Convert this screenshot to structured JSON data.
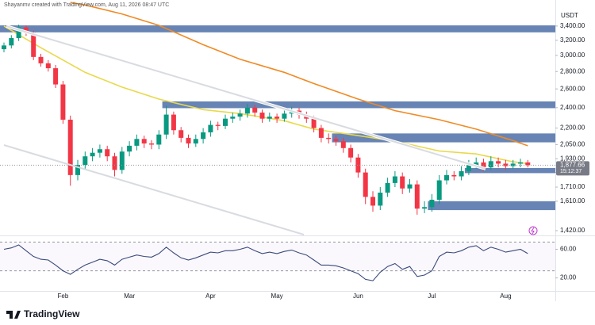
{
  "header": "Shayanmv created with TradingView.com, Aug 11, 2026 08:47 UTC",
  "brand": "TradingView",
  "chart_data": [
    {
      "type": "candlestick",
      "currency": "USDT",
      "log_scale": true,
      "up_color": "#089981",
      "down_color": "#f23645",
      "ylim": [
        1396,
        3800
      ],
      "yticks": [
        {
          "value": 3400,
          "label": "3,400.00"
        },
        {
          "value": 3200,
          "label": "3,200.00"
        },
        {
          "value": 3000,
          "label": "3,000.00"
        },
        {
          "value": 2800,
          "label": "2,800.00"
        },
        {
          "value": 2600,
          "label": "2,600.00"
        },
        {
          "value": 2400,
          "label": "2,400.00"
        },
        {
          "value": 2200,
          "label": "2,200.00"
        },
        {
          "value": 2050,
          "label": "2,050.00"
        },
        {
          "value": 1930,
          "label": "1,930.00"
        },
        {
          "value": 1820,
          "label": "1,820.00"
        },
        {
          "value": 1710,
          "label": "1,710.00"
        },
        {
          "value": 1610,
          "label": "1,610.00"
        },
        {
          "value": 1420,
          "label": "1,420.00"
        }
      ],
      "categories": [
        null,
        null,
        null,
        null,
        null,
        null,
        null,
        null,
        "Feb",
        null,
        null,
        null,
        null,
        null,
        null,
        null,
        null,
        "Mar",
        null,
        null,
        null,
        null,
        null,
        null,
        null,
        null,
        null,
        null,
        "Apr",
        null,
        null,
        null,
        null,
        null,
        null,
        null,
        null,
        "May",
        null,
        null,
        null,
        null,
        null,
        null,
        null,
        null,
        null,
        null,
        "Jun",
        null,
        null,
        null,
        null,
        null,
        null,
        null,
        null,
        null,
        "Jul",
        null,
        null,
        null,
        null,
        null,
        null,
        null,
        null,
        null,
        "Aug",
        null,
        null,
        null
      ],
      "open": [
        3080,
        3130,
        3230,
        3380,
        3300,
        2980,
        2900,
        2840,
        2650,
        2280,
        1800,
        1880,
        1950,
        1980,
        2010,
        1950,
        1840,
        1990,
        2040,
        2100,
        2060,
        2050,
        2140,
        2330,
        2180,
        2110,
        2060,
        2100,
        2160,
        2230,
        2220,
        2290,
        2310,
        2340,
        2400,
        2350,
        2290,
        2310,
        2290,
        2340,
        2370,
        2330,
        2290,
        2200,
        2110,
        2100,
        2080,
        2020,
        1940,
        1820,
        1640,
        1580,
        1670,
        1740,
        1790,
        1700,
        1730,
        1560,
        1570,
        1620,
        1760,
        1800,
        1790,
        1830,
        1880,
        1900,
        1860,
        1910,
        1890,
        1870,
        1890,
        1900
      ],
      "high": [
        3170,
        3270,
        3420,
        3410,
        3330,
        3020,
        2940,
        2880,
        2690,
        2320,
        1920,
        1990,
        2020,
        2050,
        2040,
        1980,
        2030,
        2080,
        2140,
        2130,
        2090,
        2180,
        2420,
        2360,
        2210,
        2140,
        2140,
        2200,
        2270,
        2260,
        2330,
        2350,
        2380,
        2440,
        2430,
        2380,
        2350,
        2340,
        2380,
        2410,
        2400,
        2360,
        2320,
        2230,
        2150,
        2130,
        2110,
        2050,
        1970,
        1850,
        1680,
        1710,
        1780,
        1830,
        1820,
        1770,
        1760,
        1610,
        1660,
        1800,
        1840,
        1830,
        1870,
        1920,
        1940,
        1930,
        1950,
        1940,
        1920,
        1920,
        1930,
        1920
      ],
      "low": [
        3040,
        3090,
        3190,
        3260,
        2940,
        2860,
        2800,
        2610,
        2240,
        1720,
        1760,
        1840,
        1910,
        1940,
        1910,
        1790,
        1810,
        1950,
        2000,
        2020,
        2010,
        2010,
        2100,
        2140,
        2070,
        2020,
        2030,
        2060,
        2120,
        2180,
        2190,
        2250,
        2270,
        2300,
        2310,
        2250,
        2260,
        2250,
        2260,
        2300,
        2290,
        2250,
        2160,
        2070,
        2060,
        2040,
        1980,
        1900,
        1780,
        1590,
        1540,
        1550,
        1640,
        1710,
        1660,
        1670,
        1520,
        1530,
        1540,
        1590,
        1730,
        1760,
        1760,
        1800,
        1850,
        1830,
        1840,
        1860,
        1840,
        1850,
        1860,
        1860
      ],
      "close": [
        3130,
        3230,
        3380,
        3300,
        2980,
        2900,
        2840,
        2650,
        2280,
        1800,
        1880,
        1950,
        1980,
        2010,
        1950,
        1840,
        1990,
        2040,
        2100,
        2060,
        2050,
        2140,
        2330,
        2180,
        2110,
        2060,
        2100,
        2160,
        2230,
        2220,
        2290,
        2310,
        2340,
        2400,
        2350,
        2290,
        2310,
        2290,
        2340,
        2370,
        2330,
        2290,
        2200,
        2110,
        2100,
        2080,
        2020,
        1940,
        1820,
        1640,
        1580,
        1670,
        1740,
        1790,
        1700,
        1730,
        1560,
        1570,
        1620,
        1760,
        1800,
        1790,
        1830,
        1880,
        1900,
        1860,
        1910,
        1890,
        1870,
        1890,
        1900,
        1877.66
      ],
      "series": [
        {
          "color": "#e8d94a",
          "x": [
            0,
            5,
            11,
            16,
            21,
            27,
            32,
            38,
            42,
            48,
            53,
            59,
            64,
            69,
            71
          ],
          "values": [
            3400,
            3100,
            2790,
            2620,
            2490,
            2380,
            2340,
            2270,
            2190,
            2130,
            2080,
            1995,
            1970,
            1905,
            1890
          ]
        },
        {
          "color": "#f08a24",
          "x": [
            9,
            11,
            16,
            21,
            27,
            32,
            38,
            42,
            48,
            53,
            59,
            64,
            69,
            71
          ],
          "values": [
            3760,
            3720,
            3580,
            3410,
            3140,
            2950,
            2790,
            2660,
            2490,
            2370,
            2280,
            2190,
            2085,
            2040
          ]
        }
      ],
      "zone_color": "#4c6fa8",
      "zones": [
        {
          "start": 0,
          "low": 3310,
          "high": 3410
        },
        {
          "start": 22,
          "low": 2395,
          "high": 2465
        },
        {
          "start": 45,
          "low": 2070,
          "high": 2150
        },
        {
          "start": 63,
          "low": 1815,
          "high": 1855
        },
        {
          "start": 58,
          "low": 1550,
          "high": 1610
        }
      ],
      "last_price": {
        "value": 1877.66,
        "label": "1,877.66"
      },
      "countdown": "15:12:37"
    },
    {
      "type": "line",
      "color": "#3a4a7a",
      "ylim": [
        3,
        76
      ],
      "yticks": [
        {
          "value": 60,
          "label": "60.00"
        },
        {
          "value": 20,
          "label": "20.00"
        }
      ],
      "levels": [
        70,
        30
      ],
      "values": [
        60,
        62,
        66,
        58,
        50,
        46,
        45,
        38,
        30,
        25,
        32,
        38,
        42,
        46,
        44,
        38,
        46,
        49,
        52,
        50,
        49,
        54,
        63,
        55,
        48,
        45,
        48,
        52,
        56,
        55,
        58,
        58,
        60,
        63,
        58,
        54,
        56,
        54,
        57,
        59,
        55,
        52,
        45,
        38,
        38,
        37,
        34,
        30,
        26,
        18,
        16,
        28,
        36,
        40,
        32,
        36,
        22,
        24,
        30,
        50,
        56,
        55,
        58,
        63,
        65,
        58,
        63,
        60,
        56,
        58,
        60,
        54
      ]
    }
  ]
}
